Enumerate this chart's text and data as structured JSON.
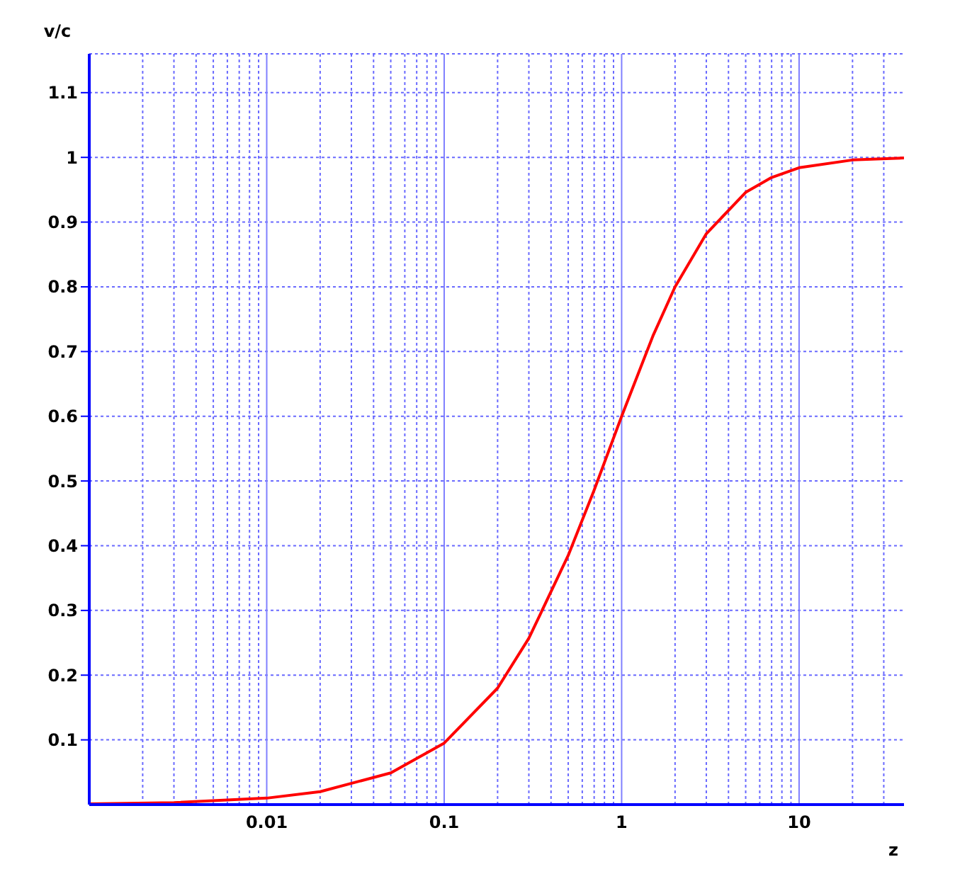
{
  "chart_data": {
    "type": "line",
    "xlabel": "z",
    "ylabel": "v/c",
    "log": "x",
    "grid": true,
    "marker": "none",
    "line_style": "solid",
    "x": [
      0.001,
      0.003,
      0.01,
      0.02,
      0.05,
      0.1,
      0.2,
      0.3,
      0.5,
      0.7,
      1,
      1.5,
      2,
      3,
      5,
      7,
      10,
      20,
      39
    ],
    "series": [
      {
        "color": "#ff0000",
        "values": [
          0.001,
          0.003,
          0.01,
          0.02,
          0.049,
          0.095,
          0.18,
          0.257,
          0.385,
          0.486,
          0.6,
          0.724,
          0.8,
          0.882,
          0.946,
          0.969,
          0.984,
          0.996,
          0.999
        ]
      }
    ],
    "xlim": [
      0.001,
      39
    ],
    "ylim": [
      0,
      1.16
    ],
    "xticks": [
      {
        "value": 0.002,
        "label": null
      },
      {
        "value": 0.003,
        "label": null
      },
      {
        "value": 0.004,
        "label": null
      },
      {
        "value": 0.005,
        "label": null
      },
      {
        "value": 0.006,
        "label": null
      },
      {
        "value": 0.007,
        "label": null
      },
      {
        "value": 0.008,
        "label": null
      },
      {
        "value": 0.009,
        "label": null
      },
      0.01,
      {
        "value": 0.02,
        "label": null
      },
      {
        "value": 0.03,
        "label": null
      },
      {
        "value": 0.04,
        "label": null
      },
      {
        "value": 0.05,
        "label": null
      },
      {
        "value": 0.06,
        "label": null
      },
      {
        "value": 0.07,
        "label": null
      },
      {
        "value": 0.08,
        "label": null
      },
      {
        "value": 0.09,
        "label": null
      },
      0.1,
      {
        "value": 0.2,
        "label": null
      },
      {
        "value": 0.3,
        "label": null
      },
      {
        "value": 0.4,
        "label": null
      },
      {
        "value": 0.5,
        "label": null
      },
      {
        "value": 0.6,
        "label": null
      },
      {
        "value": 0.7,
        "label": null
      },
      {
        "value": 0.8,
        "label": null
      },
      {
        "value": 0.9,
        "label": null
      },
      1,
      {
        "value": 2,
        "label": null
      },
      {
        "value": 3,
        "label": null
      },
      {
        "value": 4,
        "label": null
      },
      {
        "value": 5,
        "label": null
      },
      {
        "value": 6,
        "label": null
      },
      {
        "value": 7,
        "label": null
      },
      {
        "value": 8,
        "label": null
      },
      {
        "value": 9,
        "label": null
      },
      10,
      {
        "value": 20,
        "label": null
      },
      {
        "value": 30,
        "label": null
      }
    ],
    "yticks": [
      0.1,
      0.2,
      0.3,
      0.4,
      0.5,
      0.6,
      0.7,
      0.8,
      0.9,
      1,
      1.1
    ]
  }
}
